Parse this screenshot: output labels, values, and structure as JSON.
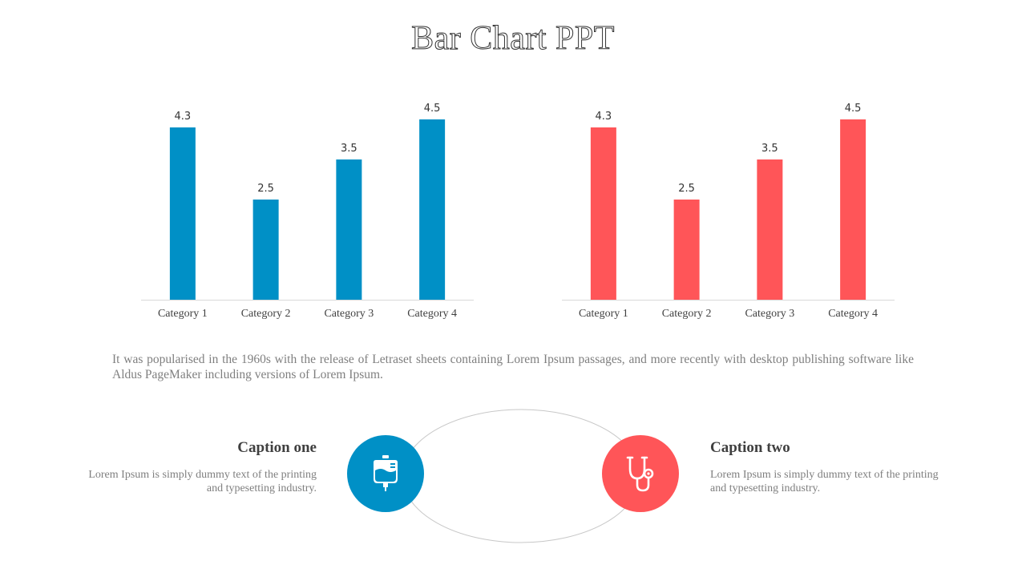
{
  "slide": {
    "title": "Bar Chart PPT",
    "description": "It was popularised in the 1960s with the release of Letraset sheets containing Lorem Ipsum passages, and more recently with desktop publishing software like Aldus PageMaker including versions of Lorem Ipsum."
  },
  "colors": {
    "blue": "#0090C6",
    "red": "#FF5558",
    "ring": "#c8c8c8"
  },
  "chart_data": [
    {
      "type": "bar",
      "categories": [
        "Category 1",
        "Category 2",
        "Category 3",
        "Category 4"
      ],
      "values": [
        4.3,
        2.5,
        3.5,
        4.5
      ],
      "data_labels": [
        "4.3",
        "2.5",
        "3.5",
        "4.5"
      ],
      "color": "#0090C6",
      "ylim": [
        0,
        5
      ],
      "grid": false,
      "legend": "none"
    },
    {
      "type": "bar",
      "categories": [
        "Category 1",
        "Category 2",
        "Category 3",
        "Category 4"
      ],
      "values": [
        4.3,
        2.5,
        3.5,
        4.5
      ],
      "data_labels": [
        "4.3",
        "2.5",
        "3.5",
        "4.5"
      ],
      "color": "#FF5558",
      "ylim": [
        0,
        5
      ],
      "grid": false,
      "legend": "none"
    }
  ],
  "captions": [
    {
      "title": "Caption one",
      "text": "Lorem Ipsum is simply dummy text of the printing and typesetting industry.",
      "icon": "iv-bag-icon"
    },
    {
      "title": "Caption two",
      "text": "Lorem Ipsum is simply dummy text of the printing and typesetting industry.",
      "icon": "stethoscope-icon"
    }
  ]
}
